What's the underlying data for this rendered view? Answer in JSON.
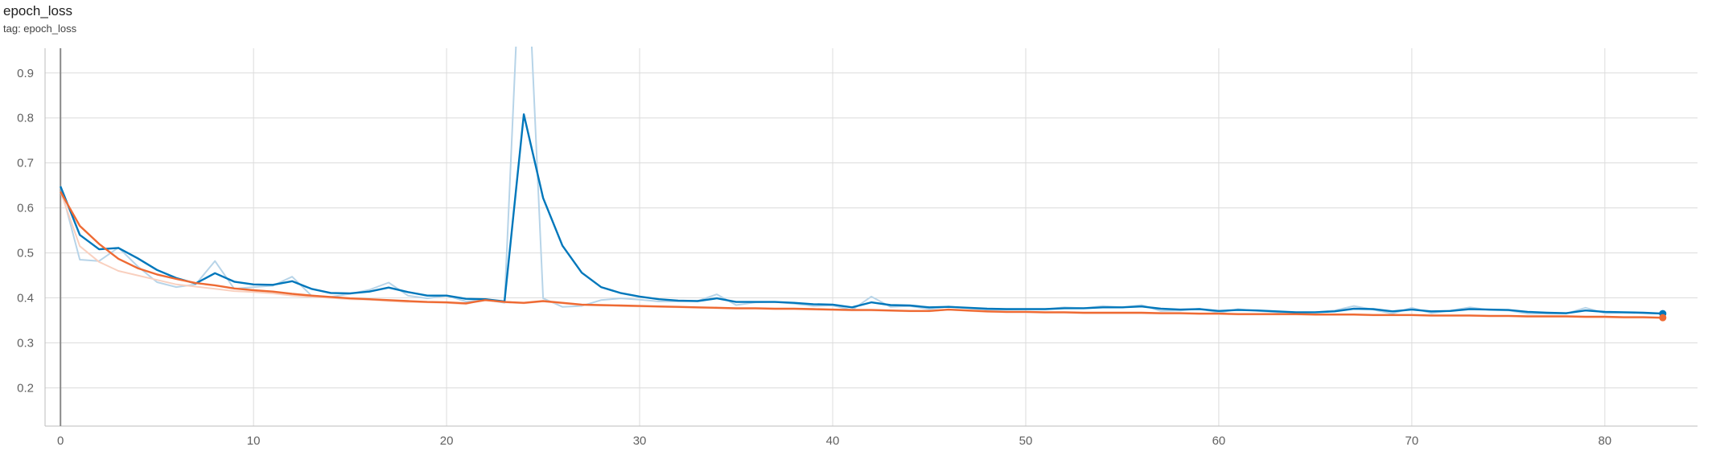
{
  "card": {
    "title": "epoch_loss",
    "tag": "tag: epoch_loss"
  },
  "chart_data": {
    "type": "line",
    "title": "epoch_loss",
    "xlim": [
      -0.8,
      84.8
    ],
    "ylim": [
      0.115,
      0.955
    ],
    "x_ticks": [
      0,
      10,
      20,
      30,
      40,
      50,
      60,
      70,
      80
    ],
    "y_ticks": [
      0.2,
      0.3,
      0.4,
      0.5,
      0.6,
      0.7,
      0.8,
      0.9
    ],
    "grid": true,
    "legend": "none",
    "series": [
      {
        "color": "#0077bb",
        "raw_color": "#b7d4e8",
        "x": [
          0,
          1,
          2,
          3,
          4,
          5,
          6,
          7,
          8,
          9,
          10,
          11,
          12,
          13,
          14,
          15,
          16,
          17,
          18,
          19,
          20,
          21,
          22,
          23,
          24,
          25,
          26,
          27,
          28,
          29,
          30,
          31,
          32,
          33,
          34,
          35,
          36,
          37,
          38,
          39,
          40,
          41,
          42,
          43,
          44,
          45,
          46,
          47,
          48,
          49,
          50,
          51,
          52,
          53,
          54,
          55,
          56,
          57,
          58,
          59,
          60,
          61,
          62,
          63,
          64,
          65,
          66,
          67,
          68,
          69,
          70,
          71,
          72,
          73,
          74,
          75,
          76,
          77,
          78,
          79,
          80,
          81,
          82,
          83
        ],
        "smoothed": [
          0.648,
          0.54,
          0.508,
          0.511,
          0.488,
          0.462,
          0.444,
          0.432,
          0.455,
          0.436,
          0.43,
          0.429,
          0.437,
          0.42,
          0.411,
          0.41,
          0.414,
          0.423,
          0.413,
          0.405,
          0.405,
          0.398,
          0.397,
          0.392,
          0.808,
          0.622,
          0.516,
          0.456,
          0.424,
          0.411,
          0.403,
          0.397,
          0.394,
          0.393,
          0.399,
          0.391,
          0.391,
          0.391,
          0.389,
          0.386,
          0.385,
          0.379,
          0.39,
          0.384,
          0.383,
          0.379,
          0.38,
          0.378,
          0.376,
          0.375,
          0.375,
          0.375,
          0.377,
          0.377,
          0.379,
          0.379,
          0.381,
          0.376,
          0.374,
          0.375,
          0.371,
          0.373,
          0.372,
          0.37,
          0.368,
          0.368,
          0.37,
          0.376,
          0.375,
          0.37,
          0.374,
          0.37,
          0.371,
          0.375,
          0.374,
          0.373,
          0.369,
          0.367,
          0.366,
          0.372,
          0.369,
          0.368,
          0.367,
          0.365
        ],
        "raw": [
          0.648,
          0.485,
          0.482,
          0.512,
          0.47,
          0.435,
          0.424,
          0.43,
          0.482,
          0.42,
          0.424,
          0.427,
          0.447,
          0.405,
          0.402,
          0.409,
          0.418,
          0.434,
          0.405,
          0.399,
          0.405,
          0.392,
          0.396,
          0.389,
          1.35,
          0.399,
          0.38,
          0.382,
          0.395,
          0.399,
          0.396,
          0.392,
          0.392,
          0.393,
          0.408,
          0.384,
          0.39,
          0.391,
          0.387,
          0.382,
          0.383,
          0.373,
          0.403,
          0.38,
          0.382,
          0.375,
          0.381,
          0.377,
          0.374,
          0.374,
          0.375,
          0.375,
          0.379,
          0.377,
          0.382,
          0.379,
          0.384,
          0.371,
          0.372,
          0.376,
          0.367,
          0.375,
          0.371,
          0.368,
          0.366,
          0.368,
          0.372,
          0.382,
          0.374,
          0.365,
          0.378,
          0.366,
          0.372,
          0.379,
          0.373,
          0.372,
          0.365,
          0.365,
          0.365,
          0.378,
          0.366,
          0.367,
          0.366,
          0.365
        ]
      },
      {
        "color": "#ee6a33",
        "raw_color": "#f9d0bf",
        "x": [
          0,
          1,
          2,
          3,
          4,
          5,
          6,
          7,
          8,
          9,
          10,
          11,
          12,
          13,
          14,
          15,
          16,
          17,
          18,
          19,
          20,
          21,
          22,
          23,
          24,
          25,
          26,
          27,
          28,
          29,
          30,
          31,
          32,
          33,
          34,
          35,
          36,
          37,
          38,
          39,
          40,
          41,
          42,
          43,
          44,
          45,
          46,
          47,
          48,
          49,
          50,
          51,
          52,
          53,
          54,
          55,
          56,
          57,
          58,
          59,
          60,
          61,
          62,
          63,
          64,
          65,
          66,
          67,
          68,
          69,
          70,
          71,
          72,
          73,
          74,
          75,
          76,
          77,
          78,
          79,
          80,
          81,
          82,
          83
        ],
        "smoothed": [
          0.636,
          0.56,
          0.52,
          0.487,
          0.466,
          0.452,
          0.442,
          0.433,
          0.428,
          0.421,
          0.417,
          0.414,
          0.409,
          0.405,
          0.402,
          0.399,
          0.397,
          0.395,
          0.393,
          0.391,
          0.39,
          0.388,
          0.395,
          0.391,
          0.389,
          0.393,
          0.389,
          0.385,
          0.384,
          0.383,
          0.382,
          0.381,
          0.38,
          0.379,
          0.378,
          0.377,
          0.377,
          0.376,
          0.376,
          0.375,
          0.374,
          0.373,
          0.373,
          0.372,
          0.371,
          0.371,
          0.374,
          0.372,
          0.37,
          0.369,
          0.369,
          0.368,
          0.368,
          0.367,
          0.367,
          0.367,
          0.367,
          0.366,
          0.366,
          0.365,
          0.365,
          0.364,
          0.364,
          0.364,
          0.364,
          0.363,
          0.363,
          0.363,
          0.362,
          0.362,
          0.362,
          0.361,
          0.361,
          0.361,
          0.36,
          0.36,
          0.359,
          0.359,
          0.359,
          0.358,
          0.358,
          0.357,
          0.357,
          0.356
        ],
        "raw": [
          0.636,
          0.515,
          0.48,
          0.46,
          0.45,
          0.44,
          0.43,
          0.425,
          0.42,
          0.415,
          0.413,
          0.41,
          0.405,
          0.402,
          0.4,
          0.397,
          0.396,
          0.393,
          0.391,
          0.39,
          0.389,
          0.386,
          0.398,
          0.39,
          0.388,
          0.392,
          0.388,
          0.384,
          0.383,
          0.382,
          0.381,
          0.38,
          0.379,
          0.378,
          0.377,
          0.376,
          0.376,
          0.375,
          0.375,
          0.374,
          0.373,
          0.372,
          0.372,
          0.371,
          0.37,
          0.37,
          0.374,
          0.371,
          0.369,
          0.368,
          0.368,
          0.367,
          0.367,
          0.366,
          0.366,
          0.366,
          0.366,
          0.365,
          0.365,
          0.364,
          0.364,
          0.363,
          0.363,
          0.363,
          0.363,
          0.362,
          0.362,
          0.362,
          0.361,
          0.361,
          0.361,
          0.36,
          0.36,
          0.36,
          0.359,
          0.359,
          0.358,
          0.358,
          0.358,
          0.357,
          0.357,
          0.356,
          0.356,
          0.355
        ]
      }
    ]
  }
}
